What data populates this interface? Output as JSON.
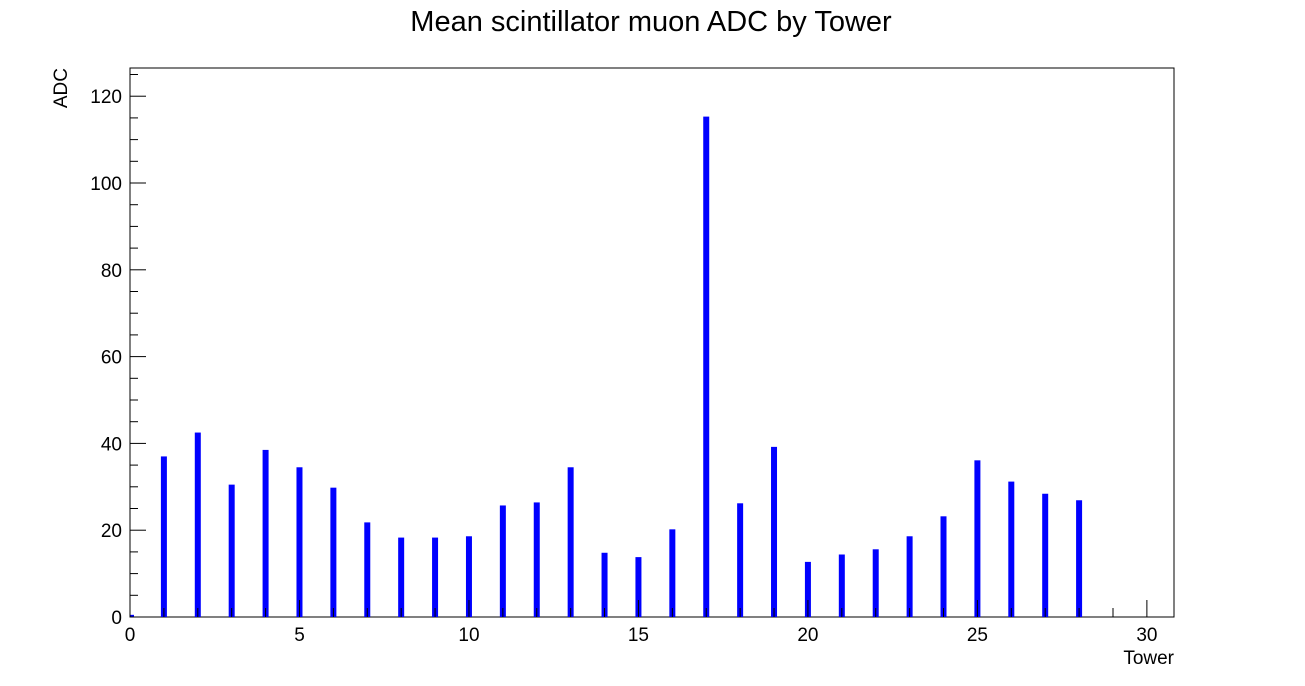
{
  "chart_data": {
    "type": "bar",
    "title": "Mean scintillator muon ADC by Tower",
    "xlabel": "Tower",
    "ylabel": "ADC",
    "xlim": [
      0,
      30.8
    ],
    "ylim": [
      0,
      126.5
    ],
    "xticks": [
      0,
      5,
      10,
      15,
      20,
      25,
      30
    ],
    "yticks": [
      0,
      20,
      40,
      60,
      80,
      100,
      120
    ],
    "bar_color": "#0000ff",
    "grid": false,
    "legend": "none",
    "x": [
      0,
      1,
      2,
      3,
      4,
      5,
      6,
      7,
      8,
      9,
      10,
      11,
      12,
      13,
      14,
      15,
      16,
      17,
      18,
      19,
      20,
      21,
      22,
      23,
      24,
      25,
      26,
      27,
      28,
      29,
      30
    ],
    "values": [
      0.5,
      37.0,
      42.5,
      30.5,
      38.5,
      34.5,
      29.8,
      21.8,
      18.3,
      18.3,
      18.6,
      25.7,
      26.4,
      34.5,
      14.8,
      13.8,
      20.2,
      115.3,
      26.2,
      39.2,
      12.7,
      14.4,
      15.6,
      18.6,
      23.2,
      36.1,
      31.2,
      28.4,
      26.9,
      0,
      0
    ]
  }
}
